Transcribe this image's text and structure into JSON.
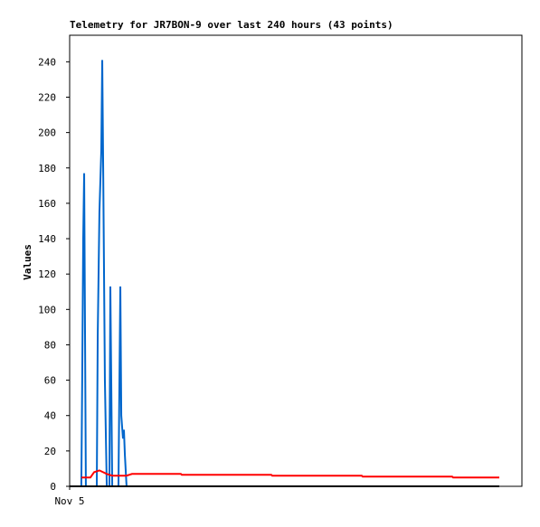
{
  "chart_data": {
    "type": "line",
    "title": "Telemetry for JR7BON-9 over last 240 hours (43 points)",
    "y_label": "Values",
    "xlim": [
      0,
      240
    ],
    "xticks": [
      {
        "value": 0,
        "label": "Nov 5"
      }
    ],
    "ylim": [
      0,
      255
    ],
    "yticks": [
      0,
      20,
      40,
      60,
      80,
      100,
      120,
      140,
      160,
      180,
      200,
      220,
      240
    ],
    "grid": false,
    "series": [
      {
        "color": "#0066cc",
        "x": [
          6.2,
          6.7,
          7.2,
          7.7,
          8.2,
          8.6,
          14.4,
          14.9,
          15.8,
          16.8,
          17.3,
          17.8,
          18.7,
          19.7,
          21.1,
          21.6,
          22.1,
          22.6,
          25.9,
          26.4,
          26.9,
          27.4,
          28.3,
          28.8,
          29.3,
          30.2
        ],
        "values": [
          0,
          65,
          140,
          177,
          80,
          0,
          0,
          85,
          155,
          190,
          241,
          180,
          60,
          0,
          0,
          113,
          57,
          0,
          0,
          57,
          113,
          40,
          27,
          32,
          18,
          0
        ]
      },
      {
        "color": "#ff0000",
        "x": [
          6.2,
          11,
          13,
          15.8,
          19.7,
          22.6,
          30.2,
          33.1,
          59,
          59.5,
          107,
          107.5,
          155,
          155.5,
          203,
          203.5,
          228
        ],
        "values": [
          5,
          5,
          8,
          9,
          7,
          6,
          6,
          7,
          7,
          6.5,
          6.5,
          6,
          6,
          5.5,
          5.5,
          5,
          5
        ]
      },
      {
        "color": "#000000",
        "x": [
          0,
          228
        ],
        "values": [
          0,
          0
        ]
      }
    ]
  }
}
